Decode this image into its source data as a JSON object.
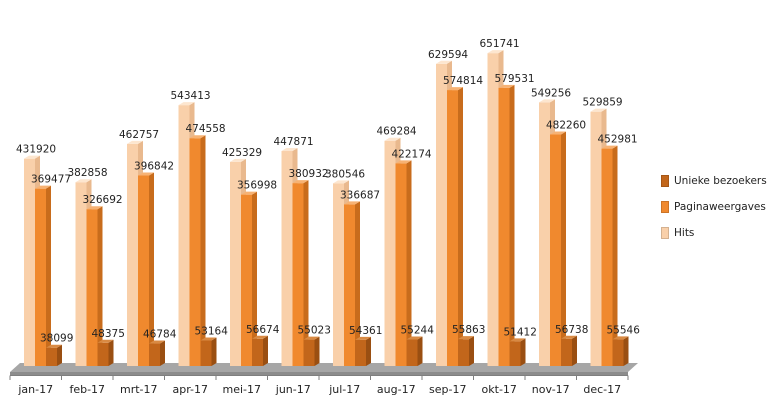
{
  "chart_data": {
    "type": "bar",
    "categories": [
      "jan-17",
      "feb-17",
      "mrt-17",
      "apr-17",
      "mei-17",
      "jun-17",
      "jul-17",
      "aug-17",
      "sep-17",
      "okt-17",
      "nov-17",
      "dec-17"
    ],
    "series": [
      {
        "name": "Hits",
        "color": "#f9d0aa",
        "values": [
          431920,
          382858,
          462757,
          543413,
          425329,
          447871,
          380546,
          469284,
          629594,
          651741,
          549256,
          529859
        ]
      },
      {
        "name": "Paginaweergaves",
        "color": "#f0892e",
        "values": [
          369477,
          326692,
          396842,
          474558,
          356998,
          380932,
          336687,
          422174,
          574814,
          579531,
          482260,
          452981
        ]
      },
      {
        "name": "Unieke bezoekers",
        "color": "#c2661b",
        "values": [
          38099,
          48375,
          46784,
          53164,
          56674,
          55023,
          54361,
          55244,
          55863,
          51412,
          56738,
          55546
        ]
      }
    ],
    "ylim": [
      0,
      700000
    ],
    "grid": false,
    "legend_position": "right",
    "legend": [
      "Unieke bezoekers",
      "Paginaweergaves",
      "Hits"
    ]
  }
}
